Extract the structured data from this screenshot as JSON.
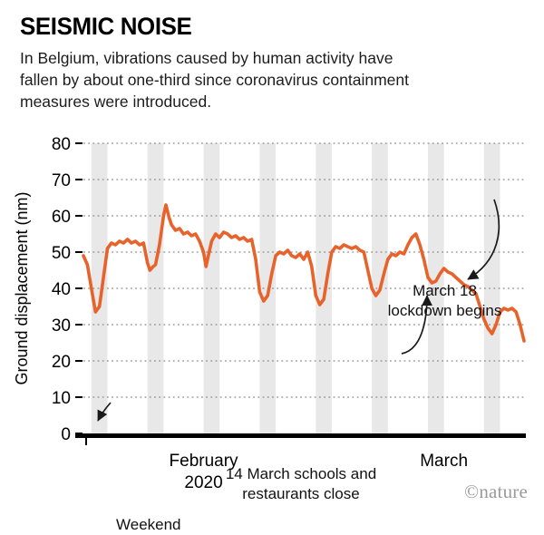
{
  "header": {
    "title": "SEISMIC NOISE",
    "subtitle": "In Belgium, vibrations caused by human activity have\nfallen by about one-third since coronavirus containment\nmeasures were introduced."
  },
  "credit": "©nature",
  "annotations": {
    "lockdown": "March 18\nlockdown begins",
    "schools": "14 March schools and\nrestaurants close",
    "weekend": "Weekend"
  },
  "chart_data": {
    "type": "line",
    "title": "Seismic noise in Belgium, Feb–Mar 2020",
    "ylabel": "Ground displacement (nm)",
    "xlabel": "",
    "ylim": [
      0,
      80
    ],
    "yticks": [
      0,
      10,
      20,
      30,
      40,
      50,
      60,
      70,
      80
    ],
    "xlim": [
      0,
      55
    ],
    "x_unit": "days since 31 Jan 2020",
    "xticks": [
      {
        "label": "February\n2020",
        "day": 15
      },
      {
        "label": "March",
        "day": 45
      }
    ],
    "grid": "dotted horizontal",
    "legend": "none",
    "band_color": "#E8E8E8",
    "line_color": "#E8632C",
    "grid_color": "#8A8A8A",
    "weekend_bands_days": [
      [
        1,
        3
      ],
      [
        8,
        10
      ],
      [
        15,
        17
      ],
      [
        22,
        24
      ],
      [
        29,
        31
      ],
      [
        36,
        38
      ],
      [
        43,
        45
      ],
      [
        50,
        52
      ]
    ],
    "series": [
      {
        "name": "Ground displacement (nm)",
        "x": [
          0,
          0.5,
          1,
          1.5,
          2,
          2.5,
          3,
          3.5,
          4,
          4.5,
          5,
          5.5,
          6,
          6.5,
          7,
          7.5,
          8,
          8.3,
          8.7,
          9,
          9.5,
          10,
          10.3,
          10.7,
          11,
          11.5,
          12,
          12.5,
          13,
          13.5,
          14,
          14.5,
          15,
          15.3,
          15.7,
          16,
          16.5,
          17,
          17.5,
          18,
          18.5,
          19,
          19.5,
          20,
          20.5,
          21,
          21.5,
          22,
          22.5,
          23,
          23.5,
          24,
          24.5,
          25,
          25.5,
          26,
          26.5,
          27,
          27.5,
          28,
          28.5,
          29,
          29.5,
          30,
          30.5,
          31,
          31.5,
          32,
          32.5,
          33,
          33.5,
          34,
          34.5,
          35,
          35.5,
          36,
          36.5,
          37,
          37.5,
          38,
          38.5,
          39,
          39.5,
          40,
          40.5,
          41,
          41.5,
          42,
          42.5,
          43,
          43.5,
          44,
          44.5,
          45,
          45.5,
          46,
          46.5,
          47,
          47.5,
          48,
          48.5,
          49,
          49.5,
          50,
          50.5,
          51,
          51.5,
          52,
          52.5,
          53,
          53.5,
          54,
          54.5,
          55
        ],
        "values": [
          49,
          46.5,
          40,
          33.5,
          35,
          43,
          51,
          52.5,
          52,
          53,
          52.5,
          53.5,
          52.5,
          53,
          52,
          52.5,
          47,
          45,
          46,
          46.5,
          52,
          60,
          63,
          59.5,
          57.5,
          56,
          56.5,
          55,
          55.5,
          54.5,
          55,
          53,
          50,
          46,
          50,
          53,
          55,
          54,
          55.5,
          55,
          54,
          54.5,
          53.5,
          54,
          53,
          53.5,
          48,
          39,
          36.5,
          38,
          44,
          49,
          50,
          49.5,
          50.5,
          49,
          48.5,
          49.5,
          48,
          50,
          46,
          38,
          35.5,
          37,
          44,
          50,
          51.5,
          51,
          52,
          51.5,
          51,
          51.5,
          50.5,
          50,
          45,
          40,
          38,
          39.5,
          44,
          48,
          49.5,
          49,
          50,
          49.5,
          52,
          54,
          55,
          52,
          48,
          43,
          41.5,
          42,
          44,
          45.5,
          44.5,
          44,
          43,
          42,
          41,
          40.5,
          39.5,
          38.5,
          35,
          31.5,
          29,
          27.5,
          30,
          33.5,
          34.5,
          34,
          34.5,
          33.5,
          30,
          25.5
        ]
      }
    ],
    "key_events": [
      {
        "day": 43,
        "label": "14 March schools and restaurants close"
      },
      {
        "day": 47,
        "label": "March 18 lockdown begins"
      }
    ]
  }
}
